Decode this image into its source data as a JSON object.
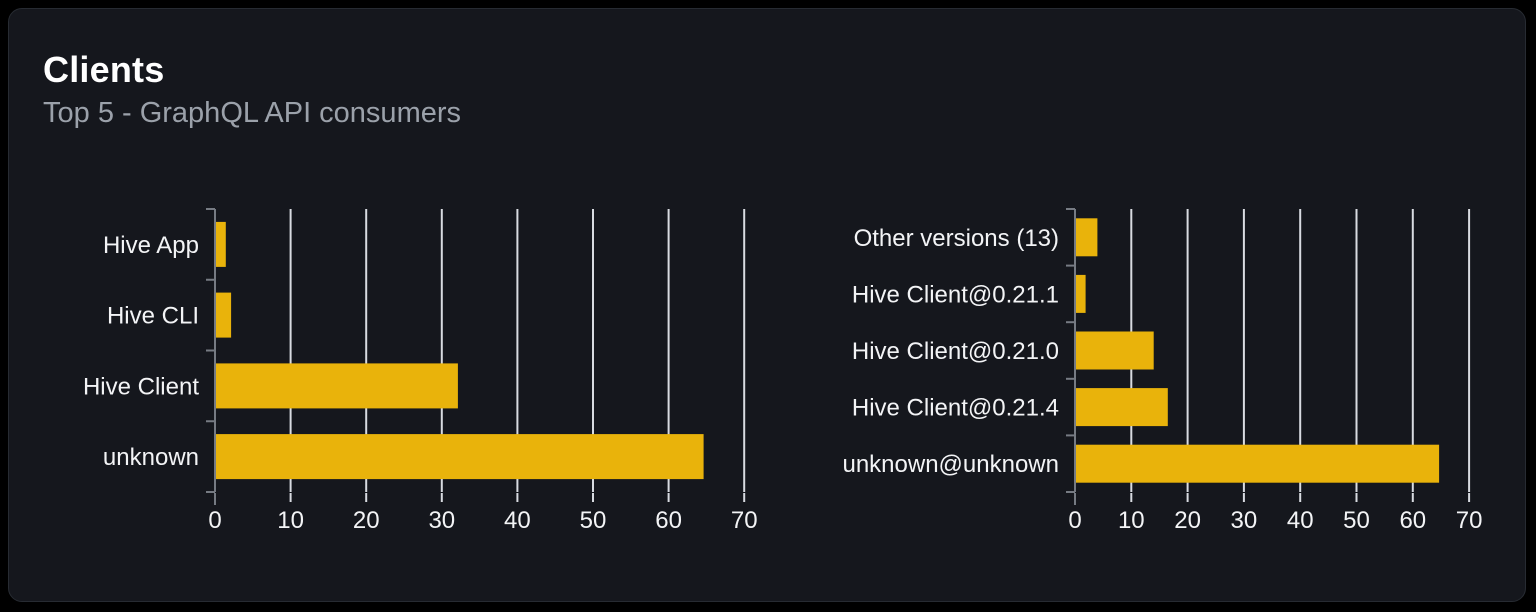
{
  "card": {
    "title": "Clients",
    "subtitle": "Top 5 - GraphQL API consumers"
  },
  "colors": {
    "page_bg": "#000000",
    "card_bg": "#15171d",
    "card_border": "#272b32",
    "bar": "#e9b30b",
    "grid": "#d8dbe1",
    "axis": "#767b83",
    "label": "#f3f4f6",
    "tick_label": "#f3f4f6",
    "title": "#ffffff",
    "subtitle": "#9ba1aa"
  },
  "chart_data": [
    {
      "type": "bar",
      "orientation": "horizontal",
      "name": "clients",
      "title": "",
      "categories": [
        "Hive App",
        "Hive CLI",
        "Hive Client",
        "unknown"
      ],
      "values": [
        1.3,
        2,
        32,
        64.5
      ],
      "xlim": [
        0,
        70
      ],
      "xticks": [
        0,
        10,
        20,
        30,
        40,
        50,
        60,
        70
      ],
      "grid": true,
      "legend": false
    },
    {
      "type": "bar",
      "orientation": "horizontal",
      "name": "client-versions",
      "title": "",
      "categories": [
        "Other versions (13)",
        "Hive Client@0.21.1",
        "Hive Client@0.21.0",
        "Hive Client@0.21.4",
        "unknown@unknown"
      ],
      "values": [
        3.8,
        1.7,
        13.8,
        16.3,
        64.5
      ],
      "xlim": [
        0,
        70
      ],
      "xticks": [
        0,
        10,
        20,
        30,
        40,
        50,
        60,
        70
      ],
      "grid": true,
      "legend": false
    }
  ]
}
